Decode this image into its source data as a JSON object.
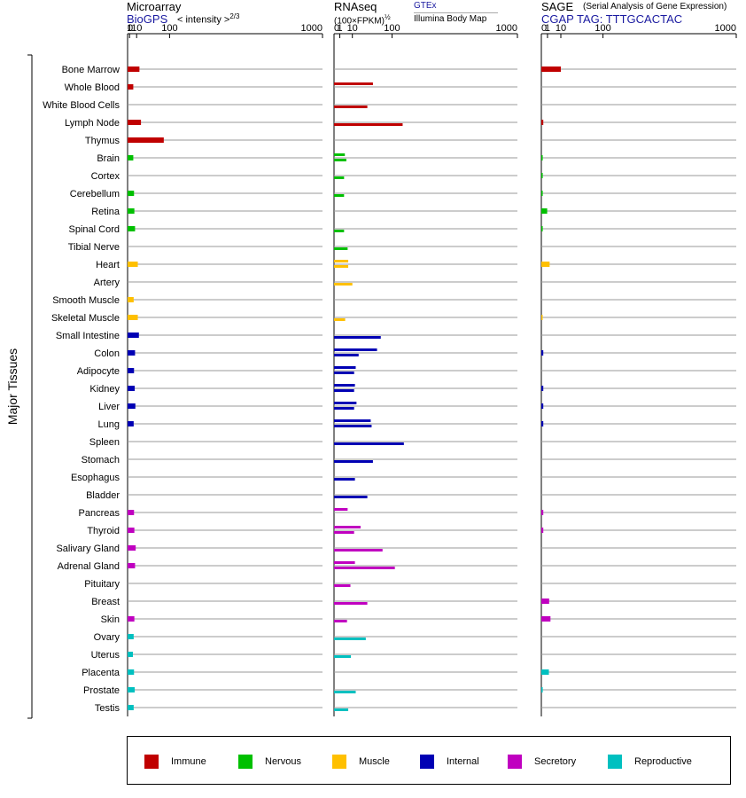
{
  "headers": {
    "microarray": {
      "title": "Microarray",
      "source": "BioGPS",
      "scale_label": "< intensity >",
      "scale_power": "2/3"
    },
    "rnaseq": {
      "title": "RNAseq",
      "scale_label": "(100×FPKM)",
      "scale_power": "½",
      "source_1": "GTEx",
      "source_2": "Illumina Body Map"
    },
    "sage": {
      "title": "SAGE",
      "subtitle": "(Serial Analysis of Gene Expression)",
      "tag_label": "CGAP TAG: TTTGCACTAC"
    }
  },
  "y_axis_title": "Major Tissues",
  "legend": [
    {
      "label": "Immune",
      "color": "#c00000"
    },
    {
      "label": "Nervous",
      "color": "#00c000"
    },
    {
      "label": "Muscle",
      "color": "#ffc000"
    },
    {
      "label": "Internal",
      "color": "#0000b4"
    },
    {
      "label": "Secretory",
      "color": "#c000c0"
    },
    {
      "label": "Reproductive",
      "color": "#00c0c0"
    }
  ],
  "chart_data": {
    "type": "bar",
    "orientation": "horizontal",
    "x_scale": "power-transformed (0, 1, 10, 100, 1000)",
    "x_ticks": [
      "0",
      "1",
      "10",
      "100",
      "1000"
    ],
    "categories": [
      "Bone Marrow",
      "Whole Blood",
      "White Blood Cells",
      "Lymph Node",
      "Thymus",
      "Brain",
      "Cortex",
      "Cerebellum",
      "Retina",
      "Spinal Cord",
      "Tibial Nerve",
      "Heart",
      "Artery",
      "Smooth Muscle",
      "Skeletal Muscle",
      "Small Intestine",
      "Colon",
      "Adipocyte",
      "Kidney",
      "Liver",
      "Lung",
      "Spleen",
      "Stomach",
      "Esophagus",
      "Bladder",
      "Pancreas",
      "Thyroid",
      "Salivary Gland",
      "Adrenal Gland",
      "Pituitary",
      "Breast",
      "Skin",
      "Ovary",
      "Uterus",
      "Placenta",
      "Prostate",
      "Testis"
    ],
    "category_group": [
      "Immune",
      "Immune",
      "Immune",
      "Immune",
      "Immune",
      "Nervous",
      "Nervous",
      "Nervous",
      "Nervous",
      "Nervous",
      "Nervous",
      "Muscle",
      "Muscle",
      "Muscle",
      "Muscle",
      "Internal",
      "Internal",
      "Internal",
      "Internal",
      "Internal",
      "Internal",
      "Internal",
      "Internal",
      "Internal",
      "Internal",
      "Secretory",
      "Secretory",
      "Secretory",
      "Secretory",
      "Secretory",
      "Secretory",
      "Secretory",
      "Reproductive",
      "Reproductive",
      "Reproductive",
      "Reproductive",
      "Reproductive"
    ],
    "microarray": [
      15,
      5,
      null,
      18,
      80,
      5,
      null,
      6,
      6.5,
      7.5,
      null,
      12,
      null,
      5.5,
      12,
      14,
      7.5,
      6,
      7,
      8,
      5.5,
      null,
      null,
      null,
      null,
      6,
      6.5,
      8.5,
      7.5,
      null,
      null,
      6.5,
      5.5,
      4.5,
      6,
      7,
      5.5
    ],
    "rnaseq_gtex": [
      null,
      45,
      null,
      null,
      null,
      3.5,
      null,
      null,
      null,
      null,
      null,
      6,
      null,
      null,
      null,
      null,
      55,
      14,
      13,
      15,
      40,
      null,
      null,
      null,
      null,
      5.5,
      21,
      null,
      13,
      null,
      null,
      null,
      null,
      null,
      null,
      null,
      null
    ],
    "rnaseq_ibm": [
      null,
      null,
      33,
      140,
      null,
      4.5,
      3,
      3,
      null,
      3,
      5.5,
      6,
      10,
      null,
      3.7,
      65,
      18,
      12,
      12,
      12,
      42,
      145,
      45,
      13,
      33,
      null,
      12,
      70,
      110,
      8,
      33,
      5,
      30,
      8.5,
      null,
      14,
      6
    ],
    "sage": [
      10,
      null,
      null,
      0.1,
      null,
      0.05,
      0.05,
      0.05,
      0.9,
      0.05,
      null,
      1.8,
      null,
      null,
      0.02,
      null,
      0.1,
      null,
      0.1,
      0.1,
      0.1,
      null,
      null,
      null,
      null,
      0.1,
      0.1,
      null,
      null,
      null,
      1.6,
      2.2,
      null,
      null,
      1.5,
      0.05,
      null
    ]
  }
}
